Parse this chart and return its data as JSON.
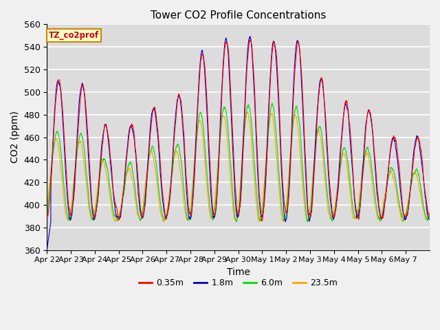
{
  "title": "Tower CO2 Profile Concentrations",
  "xlabel": "Time",
  "ylabel": "CO2 (ppm)",
  "ylim": [
    360,
    560
  ],
  "yticks": [
    360,
    380,
    400,
    420,
    440,
    460,
    480,
    500,
    520,
    540,
    560
  ],
  "legend_label": "TZ_co2prof",
  "series_labels": [
    "0.35m",
    "1.8m",
    "6.0m",
    "23.5m"
  ],
  "series_colors": [
    "#ff0000",
    "#0000cc",
    "#00dd00",
    "#ffa500"
  ],
  "xtick_labels": [
    "Apr 22",
    "Apr 23",
    "Apr 24",
    "Apr 25",
    "Apr 26",
    "Apr 27",
    "Apr 28",
    "Apr 29",
    "Apr 30",
    "May 1",
    "May 2",
    "May 3",
    "May 4",
    "May 5",
    "May 6",
    "May 7"
  ],
  "bg_color": "#dcdcdc",
  "grid_color": "#ffffff",
  "fig_bgcolor": "#f0f0f0",
  "n_points": 2880,
  "seed": 12
}
